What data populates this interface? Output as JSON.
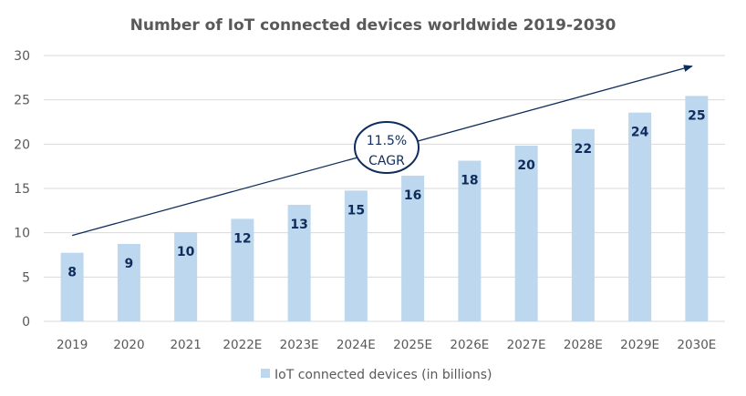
{
  "chart_data": {
    "type": "bar",
    "title": "Number of IoT connected devices worldwide 2019-2030",
    "xlabel": "",
    "ylabel": "",
    "categories": [
      "2019",
      "2020",
      "2021",
      "2022E",
      "2023E",
      "2024E",
      "2025E",
      "2026E",
      "2027E",
      "2028E",
      "2029E",
      "2030E"
    ],
    "series": [
      {
        "name": "IoT connected devices (in billions)",
        "values": [
          7.74,
          8.74,
          10.07,
          11.57,
          13.15,
          14.76,
          16.44,
          18.13,
          19.83,
          21.7,
          23.56,
          25.44
        ],
        "data_labels": [
          "8",
          "9",
          "10",
          "12",
          "13",
          "15",
          "16",
          "18",
          "20",
          "22",
          "24",
          "25"
        ],
        "color": "#BDD7EE"
      }
    ],
    "ylim": [
      0,
      30
    ],
    "yticks": [
      0,
      5,
      10,
      15,
      20,
      25,
      30
    ],
    "grid": true,
    "legend_position": "bottom",
    "annotation": {
      "type": "trend-arrow",
      "from": {
        "category": "2019",
        "value": 9.7
      },
      "to": {
        "category": "2030E",
        "value": 28.8
      },
      "label_line1": "11.5%",
      "label_line2": "CAGR",
      "color": "#0F2D5C"
    },
    "colors": {
      "bar": "#BDD7EE",
      "data_label": "#0F2D5C",
      "gridline": "#D9D9D9",
      "axis_text": "#595959",
      "annotation": "#0F2D5C"
    }
  }
}
